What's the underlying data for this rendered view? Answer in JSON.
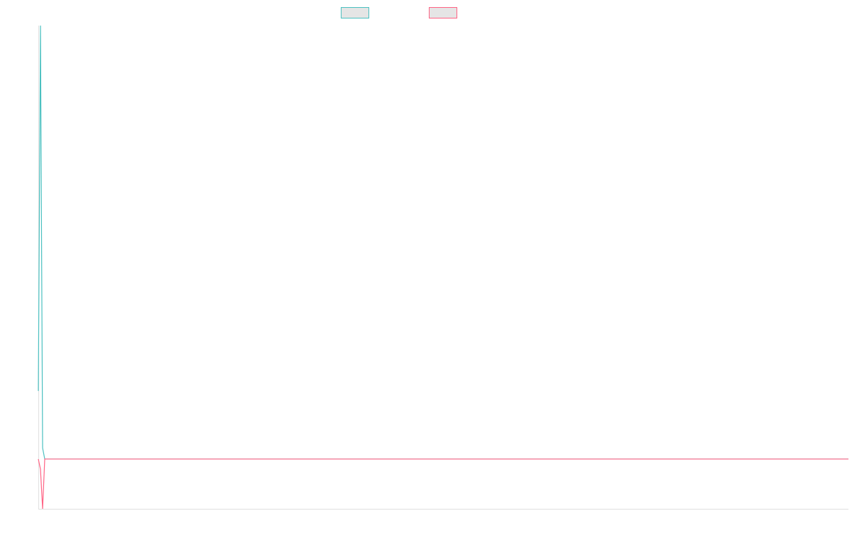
{
  "chart_data": {
    "type": "line",
    "title": "",
    "xlabel": "",
    "ylabel": "",
    "xlim": [
      0,
      380
    ],
    "ylim": [
      0,
      100
    ],
    "grid": false,
    "legend": "top",
    "series": [
      {
        "color": "#4bc0c0",
        "points": [
          [
            0,
            24.4
          ],
          [
            1,
            100
          ],
          [
            2,
            12.6
          ],
          [
            3,
            10.3
          ],
          [
            380,
            10.3
          ]
        ]
      },
      {
        "color": "#ff6384",
        "points": [
          [
            0,
            10.3
          ],
          [
            1,
            8.2
          ],
          [
            2,
            0
          ],
          [
            3,
            10.3
          ],
          [
            380,
            10.3
          ]
        ]
      }
    ]
  }
}
